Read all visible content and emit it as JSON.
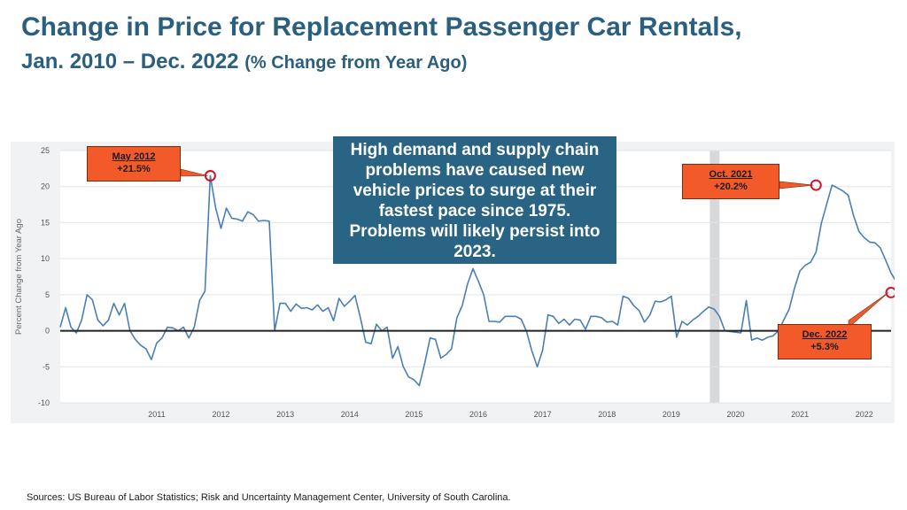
{
  "header": {
    "title": "Change in Price for Replacement Passenger Car Rentals,",
    "subtitle_main": "Jan. 2010 – Dec. 2022",
    "subtitle_paren": "(% Change from Year Ago)"
  },
  "textbox": "High demand and supply chain problems have caused new vehicle prices to surge at their fastest pace since 1975. Problems will likely persist into 2023.",
  "callouts": [
    {
      "date": "May 2012",
      "value": "+21.5%"
    },
    {
      "date": "Oct. 2021",
      "value": "+20.2%"
    },
    {
      "date": "Dec. 2022",
      "value": "+5.3%"
    }
  ],
  "source": "Sources: US Bureau of Labor Statistics; Risk and Uncertainty Management Center, University of South Carolina.",
  "colors": {
    "title": "#2a5f7f",
    "line": "#4a7fb5",
    "callout": "#f35a2a",
    "marker": "#d0142c",
    "textbox": "#2a6484",
    "recession": "#d6d8dc"
  },
  "chart_data": {
    "type": "line",
    "title": "Change in Price for Replacement Passenger Car Rentals",
    "ylabel": "Percent Change from Year Ago",
    "xlabel": "",
    "ylim": [
      -10,
      25
    ],
    "xlim": [
      2010.0,
      2022.917
    ],
    "yticks": [
      "25",
      "20",
      "15",
      "10",
      "5",
      "0",
      "-5",
      "-10"
    ],
    "xticks": [
      "2011",
      "2012",
      "2013",
      "2014",
      "2015",
      "2016",
      "2017",
      "2018",
      "2019",
      "2020",
      "2021",
      "2022"
    ],
    "recession_band": [
      2020.1,
      2020.25
    ],
    "highlights": [
      {
        "label": "May 2012",
        "x": 2012.333,
        "y": 21.5
      },
      {
        "label": "Oct. 2021",
        "x": 2021.75,
        "y": 20.2
      },
      {
        "label": "Dec. 2022",
        "x": 2022.917,
        "y": 5.3
      }
    ],
    "series": [
      {
        "name": "Replacement passenger car rentals",
        "start": 2010.0,
        "step": 0.0833333,
        "values": [
          0.5,
          3.2,
          0.5,
          -0.3,
          1.5,
          5.0,
          4.3,
          1.5,
          0.7,
          1.5,
          3.8,
          2.2,
          3.8,
          0,
          -1.2,
          -2.0,
          -2.5,
          -4.0,
          -1.7,
          -1.0,
          0.5,
          0.4,
          0,
          0.5,
          -1.0,
          0.5,
          4.2,
          5.5,
          21.5,
          17.0,
          14.2,
          17.0,
          15.6,
          15.5,
          15.2,
          16.5,
          16.1,
          15.2,
          15.3,
          15.2,
          0,
          3.8,
          3.8,
          2.7,
          3.7,
          3.1,
          3.2,
          2.9,
          3.6,
          2.7,
          3.2,
          1.4,
          4.5,
          3.4,
          4.1,
          4.9,
          1.8,
          -1.6,
          -1.8,
          0.9,
          0,
          0.5,
          -3.8,
          -2.2,
          -5.0,
          -6.4,
          -6.8,
          -7.6,
          -4.5,
          -1.0,
          -1.2,
          -3.8,
          -3.3,
          -2.5,
          1.8,
          3.5,
          6.5,
          8.6,
          6.9,
          5.0,
          1.3,
          1.3,
          1.2,
          2.0,
          2.0,
          2.0,
          1.6,
          -0.1,
          -2.8,
          -5.0,
          -2.7,
          2.2,
          2.0,
          1.0,
          1.6,
          0.8,
          1.6,
          1.5,
          0.2,
          2.0,
          2.0,
          1.8,
          1.2,
          1.3,
          0.8,
          4.8,
          4.5,
          3.5,
          2.8,
          1.2,
          2.2,
          4.1,
          4.0,
          4.3,
          4.8,
          -0.9,
          1.3,
          0.8,
          1.5,
          2.0,
          2.7,
          3.3,
          3.0,
          2.0,
          0,
          -0.1,
          -0.2,
          -0.3,
          4.2,
          -1.3,
          -1.0,
          -1.3,
          -0.9,
          -0.7,
          0,
          1.5,
          3.0,
          5.9,
          8.3,
          9.1,
          9.5,
          10.9,
          14.9,
          17.6,
          20.2,
          19.8,
          19.4,
          18.8,
          16.0,
          13.8,
          12.9,
          12.3,
          12.2,
          11.5,
          9.8,
          8.0,
          6.8,
          5.5,
          5.3
        ]
      }
    ]
  }
}
